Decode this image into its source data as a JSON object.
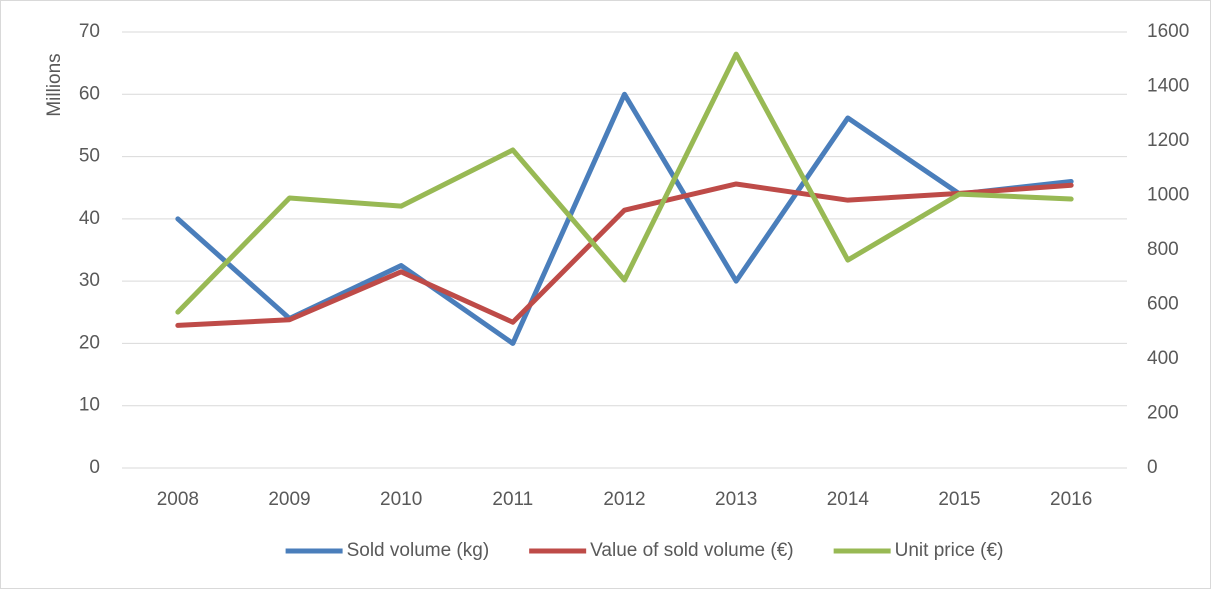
{
  "chart_data": {
    "type": "line",
    "y_label": "Millions",
    "categories": [
      "2008",
      "2009",
      "2010",
      "2011",
      "2012",
      "2013",
      "2014",
      "2015",
      "2016"
    ],
    "series": [
      {
        "name": "Sold volume (kg)",
        "color": "#4a7ebb",
        "values": [
          40,
          24,
          32.5,
          20,
          60,
          30,
          56.2,
          44,
          46
        ]
      },
      {
        "name": "Value of sold volume (€)",
        "color": "#be4b48",
        "values": [
          22.9,
          23.8,
          31.5,
          23.4,
          41.4,
          45.6,
          43,
          44.1,
          45.4
        ]
      },
      {
        "name": "Unit price (€)",
        "color": "#98b954",
        "axis": "y2",
        "values": [
          572,
          991,
          961,
          1167,
          690,
          1519,
          763,
          1005,
          987
        ]
      }
    ],
    "ylim": [
      0,
      70
    ],
    "yticks": [
      0,
      10,
      20,
      30,
      40,
      50,
      60,
      70
    ],
    "y2lim": [
      0,
      1600
    ],
    "y2ticks": [
      0,
      200,
      400,
      600,
      800,
      1000,
      1200,
      1400,
      1600
    ],
    "grid": true,
    "legend": "bottom"
  }
}
